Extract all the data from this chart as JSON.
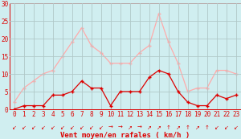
{
  "hours": [
    0,
    1,
    2,
    3,
    4,
    5,
    6,
    7,
    8,
    9,
    10,
    11,
    12,
    13,
    14,
    15,
    16,
    17,
    18,
    19,
    20,
    21,
    22,
    23
  ],
  "avg_wind": [
    0,
    1,
    1,
    1,
    4,
    4,
    5,
    8,
    6,
    6,
    1,
    5,
    5,
    5,
    9,
    11,
    10,
    5,
    2,
    1,
    1,
    4,
    3,
    4
  ],
  "gust_wind": [
    2,
    6,
    8,
    10,
    11,
    15,
    19,
    23,
    18,
    16,
    13,
    13,
    13,
    16,
    18,
    27,
    19,
    13,
    5,
    6,
    6,
    11,
    11,
    10
  ],
  "avg_color": "#dd0000",
  "gust_color": "#ffaaaa",
  "bg_color": "#d0eef0",
  "grid_color": "#b0c8c8",
  "xlabel": "Vent moyen/en rafales ( km/h )",
  "ylim": [
    0,
    30
  ],
  "yticks": [
    0,
    5,
    10,
    15,
    20,
    25,
    30
  ],
  "xticks": [
    0,
    1,
    2,
    3,
    4,
    5,
    6,
    7,
    8,
    9,
    10,
    11,
    12,
    13,
    14,
    15,
    16,
    17,
    18,
    19,
    20,
    21,
    22,
    23
  ],
  "arrow_dirs": [
    "↙",
    "↙",
    "↙",
    "↙",
    "↙",
    "↙",
    "↙",
    "↙",
    "↙",
    "↙",
    "→",
    "→",
    "↗",
    "→",
    "↗",
    "↗",
    "↑",
    "↗",
    "↑",
    "↗",
    "↑",
    "↙",
    "↙",
    "↙"
  ]
}
